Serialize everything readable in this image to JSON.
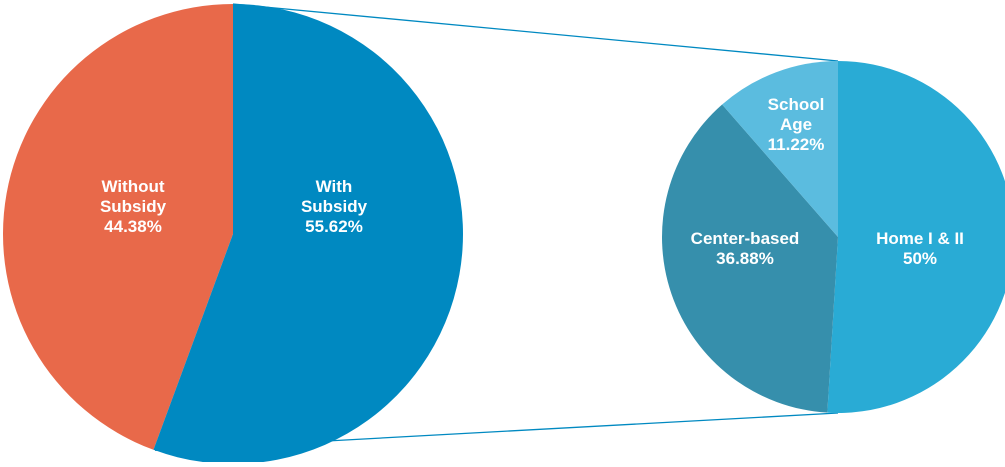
{
  "chart_data": [
    {
      "type": "pie",
      "slices": [
        {
          "key": "without_subsidy",
          "label_lines": [
            "Without",
            "Subsidy",
            "44.38%"
          ],
          "value": 44.38,
          "color": "#E8694A"
        },
        {
          "key": "with_subsidy",
          "label_lines": [
            "With",
            "Subsidy",
            "55.62%"
          ],
          "value": 55.62,
          "color": "#0089C1"
        }
      ]
    },
    {
      "type": "pie",
      "detail_of": "with_subsidy",
      "slices": [
        {
          "key": "home",
          "label_lines": [
            "Home I & II",
            "50%"
          ],
          "value": 50,
          "color": "#29ABD5"
        },
        {
          "key": "center",
          "label_lines": [
            "Center-based",
            "36.88%"
          ],
          "value": 36.88,
          "color": "#368FAC"
        },
        {
          "key": "school",
          "label_lines": [
            "School",
            "Age",
            "11.22%"
          ],
          "value": 11.22,
          "color": "#5BBCDF"
        }
      ]
    }
  ],
  "colors": {
    "connector_line": "#0089C1",
    "label_text": "#ffffff"
  }
}
